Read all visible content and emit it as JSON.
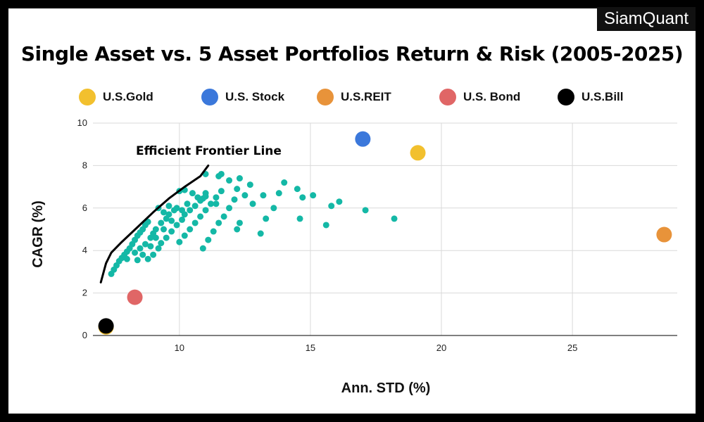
{
  "brand": "SiamQuant",
  "chart_data": {
    "type": "scatter",
    "title": "Single Asset vs. 5 Asset Portfolios Return & Risk  (2005-2025)",
    "xlabel": "Ann. STD (%)",
    "ylabel": "CAGR (%)",
    "xlim": [
      6.7,
      29
    ],
    "ylim": [
      0,
      10
    ],
    "xticks": [
      10,
      15,
      20,
      25
    ],
    "yticks": [
      0,
      2,
      4,
      6,
      8,
      10
    ],
    "grid": true,
    "legend_position": "top",
    "series": [
      {
        "name": "U.S.Gold",
        "color": "#F2C02E",
        "points": [
          [
            19.1,
            8.6
          ],
          [
            7.2,
            0.4
          ]
        ]
      },
      {
        "name": "U.S. Stock",
        "color": "#3B78DB",
        "points": [
          [
            17.0,
            9.25
          ]
        ]
      },
      {
        "name": "U.S.REIT",
        "color": "#E8933A",
        "points": [
          [
            28.5,
            4.75
          ]
        ]
      },
      {
        "name": "U.S. Bond",
        "color": "#E06666",
        "points": [
          [
            8.3,
            1.8
          ]
        ]
      },
      {
        "name": "U.S.Bill",
        "color": "#000000",
        "points": [
          [
            7.2,
            0.45
          ]
        ]
      }
    ],
    "portfolios": {
      "name": "5 Asset Portfolios",
      "color": "#14B8A6",
      "points": [
        [
          7.4,
          2.9
        ],
        [
          7.5,
          3.1
        ],
        [
          7.6,
          3.3
        ],
        [
          7.7,
          3.5
        ],
        [
          7.8,
          3.65
        ],
        [
          7.9,
          3.8
        ],
        [
          8.0,
          3.95
        ],
        [
          8.1,
          4.1
        ],
        [
          8.2,
          4.3
        ],
        [
          8.3,
          4.5
        ],
        [
          8.4,
          4.7
        ],
        [
          8.5,
          4.85
        ],
        [
          8.6,
          5.0
        ],
        [
          8.7,
          5.2
        ],
        [
          8.8,
          5.35
        ],
        [
          8.0,
          3.6
        ],
        [
          8.3,
          3.9
        ],
        [
          8.5,
          4.1
        ],
        [
          8.7,
          4.3
        ],
        [
          8.9,
          4.6
        ],
        [
          9.0,
          4.8
        ],
        [
          9.1,
          5.0
        ],
        [
          9.3,
          5.3
        ],
        [
          9.5,
          5.5
        ],
        [
          9.6,
          5.7
        ],
        [
          9.8,
          5.9
        ],
        [
          9.9,
          6.0
        ],
        [
          8.8,
          3.6
        ],
        [
          9.0,
          3.8
        ],
        [
          9.2,
          4.1
        ],
        [
          9.3,
          4.35
        ],
        [
          9.5,
          4.6
        ],
        [
          9.7,
          4.9
        ],
        [
          9.9,
          5.2
        ],
        [
          10.1,
          5.45
        ],
        [
          10.2,
          5.7
        ],
        [
          10.4,
          5.9
        ],
        [
          10.6,
          6.1
        ],
        [
          10.8,
          6.35
        ],
        [
          11.0,
          6.55
        ],
        [
          9.4,
          5.8
        ],
        [
          9.2,
          6.0
        ],
        [
          9.6,
          6.1
        ],
        [
          10.0,
          6.8
        ],
        [
          10.2,
          6.85
        ],
        [
          10.5,
          6.7
        ],
        [
          10.7,
          6.5
        ],
        [
          10.9,
          6.45
        ],
        [
          11.0,
          6.7
        ],
        [
          11.0,
          7.6
        ],
        [
          11.5,
          7.5
        ],
        [
          11.6,
          7.6
        ],
        [
          11.9,
          7.3
        ],
        [
          12.3,
          7.4
        ],
        [
          12.7,
          7.1
        ],
        [
          13.2,
          6.6
        ],
        [
          10.0,
          4.4
        ],
        [
          10.2,
          4.7
        ],
        [
          10.4,
          5.0
        ],
        [
          10.6,
          5.3
        ],
        [
          10.8,
          5.6
        ],
        [
          11.0,
          5.9
        ],
        [
          11.2,
          6.2
        ],
        [
          11.4,
          6.5
        ],
        [
          11.6,
          6.8
        ],
        [
          10.9,
          4.1
        ],
        [
          11.1,
          4.5
        ],
        [
          11.3,
          4.9
        ],
        [
          11.5,
          5.3
        ],
        [
          11.7,
          5.6
        ],
        [
          11.9,
          6.0
        ],
        [
          12.1,
          6.4
        ],
        [
          12.2,
          6.9
        ],
        [
          12.5,
          6.6
        ],
        [
          12.3,
          5.3
        ],
        [
          12.2,
          5.0
        ],
        [
          12.8,
          6.2
        ],
        [
          13.1,
          4.8
        ],
        [
          13.3,
          5.5
        ],
        [
          13.6,
          6.0
        ],
        [
          13.8,
          6.7
        ],
        [
          14.0,
          7.2
        ],
        [
          14.5,
          6.9
        ],
        [
          14.7,
          6.5
        ],
        [
          14.6,
          5.5
        ],
        [
          15.1,
          6.6
        ],
        [
          15.6,
          5.2
        ],
        [
          15.8,
          6.1
        ],
        [
          16.1,
          6.3
        ],
        [
          17.1,
          5.9
        ],
        [
          18.2,
          5.5
        ],
        [
          10.3,
          6.2
        ],
        [
          10.1,
          5.9
        ],
        [
          9.7,
          5.4
        ],
        [
          9.4,
          5.0
        ],
        [
          9.1,
          4.6
        ],
        [
          8.9,
          4.2
        ],
        [
          8.6,
          3.8
        ],
        [
          8.4,
          3.55
        ],
        [
          11.4,
          6.2
        ]
      ]
    },
    "frontier": {
      "label": "Efficient Frontier Line",
      "points": [
        [
          7.0,
          2.5
        ],
        [
          7.2,
          3.4
        ],
        [
          7.4,
          3.9
        ],
        [
          7.8,
          4.4
        ],
        [
          8.4,
          5.1
        ],
        [
          9.0,
          5.8
        ],
        [
          9.6,
          6.45
        ],
        [
          10.2,
          7.0
        ],
        [
          10.8,
          7.5
        ],
        [
          11.1,
          8.0
        ]
      ]
    }
  }
}
